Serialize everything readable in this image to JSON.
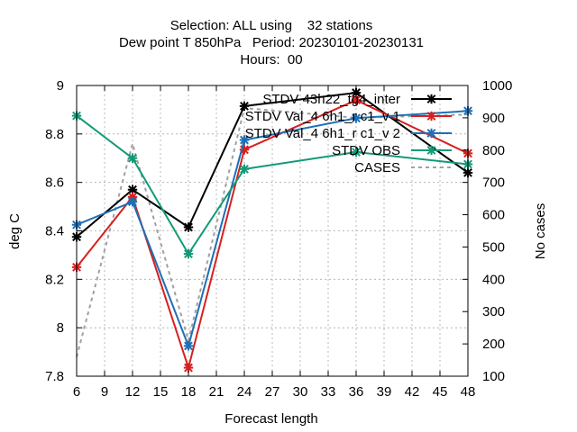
{
  "chart_data": {
    "type": "line",
    "title_lines": [
      "Selection: ALL using    32 stations",
      "Dew point T 850hPa   Period: 20230101-20230131",
      "Hours:  00"
    ],
    "xlabel": "Forecast length",
    "ylabel": "deg C",
    "y2label": "No cases",
    "x": [
      6,
      12,
      18,
      24,
      36,
      48
    ],
    "xlim": [
      6,
      48
    ],
    "xticks": [
      6,
      9,
      12,
      15,
      18,
      21,
      24,
      27,
      30,
      33,
      36,
      39,
      42,
      45,
      48
    ],
    "ylim": [
      7.8,
      9.0
    ],
    "yticks": [
      7.8,
      8.0,
      8.2,
      8.4,
      8.6,
      8.8,
      9.0
    ],
    "ytick_labels": [
      "7.8",
      "8",
      "8.2",
      "8.4",
      "8.6",
      "8.8",
      "9"
    ],
    "y2lim": [
      100,
      1000
    ],
    "y2ticks": [
      100,
      200,
      300,
      400,
      500,
      600,
      700,
      800,
      900,
      1000
    ],
    "grid": true,
    "legend_position": "top-right",
    "series": [
      {
        "name": "STDV 43h22_tg4_inter",
        "color": "#000000",
        "axis": "y1",
        "dash": false,
        "marker": true,
        "values": [
          8.375,
          8.57,
          8.415,
          8.915,
          8.97,
          8.64
        ]
      },
      {
        "name": "STDV Val_4 6h1_r c1_v 1",
        "color": "#d62020",
        "axis": "y1",
        "dash": false,
        "marker": true,
        "values": [
          8.25,
          8.54,
          7.835,
          8.735,
          8.94,
          8.72
        ]
      },
      {
        "name": "STDV Val_4 6h1_r c1_v 2",
        "color": "#1f6fb4",
        "axis": "y1",
        "dash": false,
        "marker": true,
        "values": [
          8.425,
          8.52,
          7.925,
          8.775,
          8.865,
          8.895
        ]
      },
      {
        "name": "STDV OBS",
        "color": "#129a78",
        "axis": "y1",
        "dash": false,
        "marker": true,
        "values": [
          8.875,
          8.7,
          8.305,
          8.655,
          8.725,
          8.675
        ]
      },
      {
        "name": "CASES",
        "color": "#a0a0a0",
        "axis": "y2",
        "dash": true,
        "marker": false,
        "values": [
          160,
          820,
          210,
          930,
          900,
          910
        ]
      }
    ]
  }
}
